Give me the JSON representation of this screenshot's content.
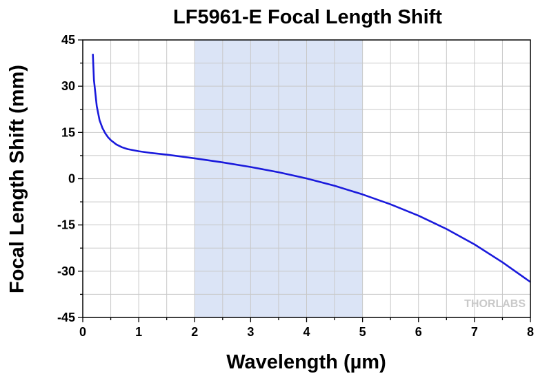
{
  "chart_data": {
    "type": "line",
    "title": "LF5961-E Focal Length Shift",
    "xlabel": "Wavelength (µm)",
    "ylabel": "Focal Length Shift (mm)",
    "xlim": [
      0,
      8
    ],
    "ylim": [
      -45,
      45
    ],
    "x_ticks": [
      0,
      1,
      2,
      3,
      4,
      5,
      6,
      7,
      8
    ],
    "y_ticks": [
      -45,
      -30,
      -15,
      0,
      15,
      30,
      45
    ],
    "grid": true,
    "shaded_region": {
      "x": [
        2,
        5
      ],
      "color": "#dbe4f6"
    },
    "series": [
      {
        "color": "#1a1adc",
        "x": [
          0.18,
          0.2,
          0.25,
          0.3,
          0.35,
          0.4,
          0.45,
          0.5,
          0.6,
          0.7,
          0.8,
          1.0,
          1.2,
          1.5,
          2.0,
          2.5,
          3.0,
          3.5,
          4.0,
          4.5,
          5.0,
          5.5,
          6.0,
          6.5,
          7.0,
          7.5,
          8.0
        ],
        "y": [
          40.5,
          32.0,
          23.5,
          19.0,
          16.5,
          14.8,
          13.5,
          12.5,
          11.1,
          10.2,
          9.6,
          8.9,
          8.4,
          7.8,
          6.6,
          5.3,
          3.8,
          2.1,
          0.1,
          -2.3,
          -5.1,
          -8.3,
          -12.0,
          -16.3,
          -21.3,
          -27.1,
          -33.5
        ]
      }
    ]
  },
  "watermark": "THORLABS"
}
